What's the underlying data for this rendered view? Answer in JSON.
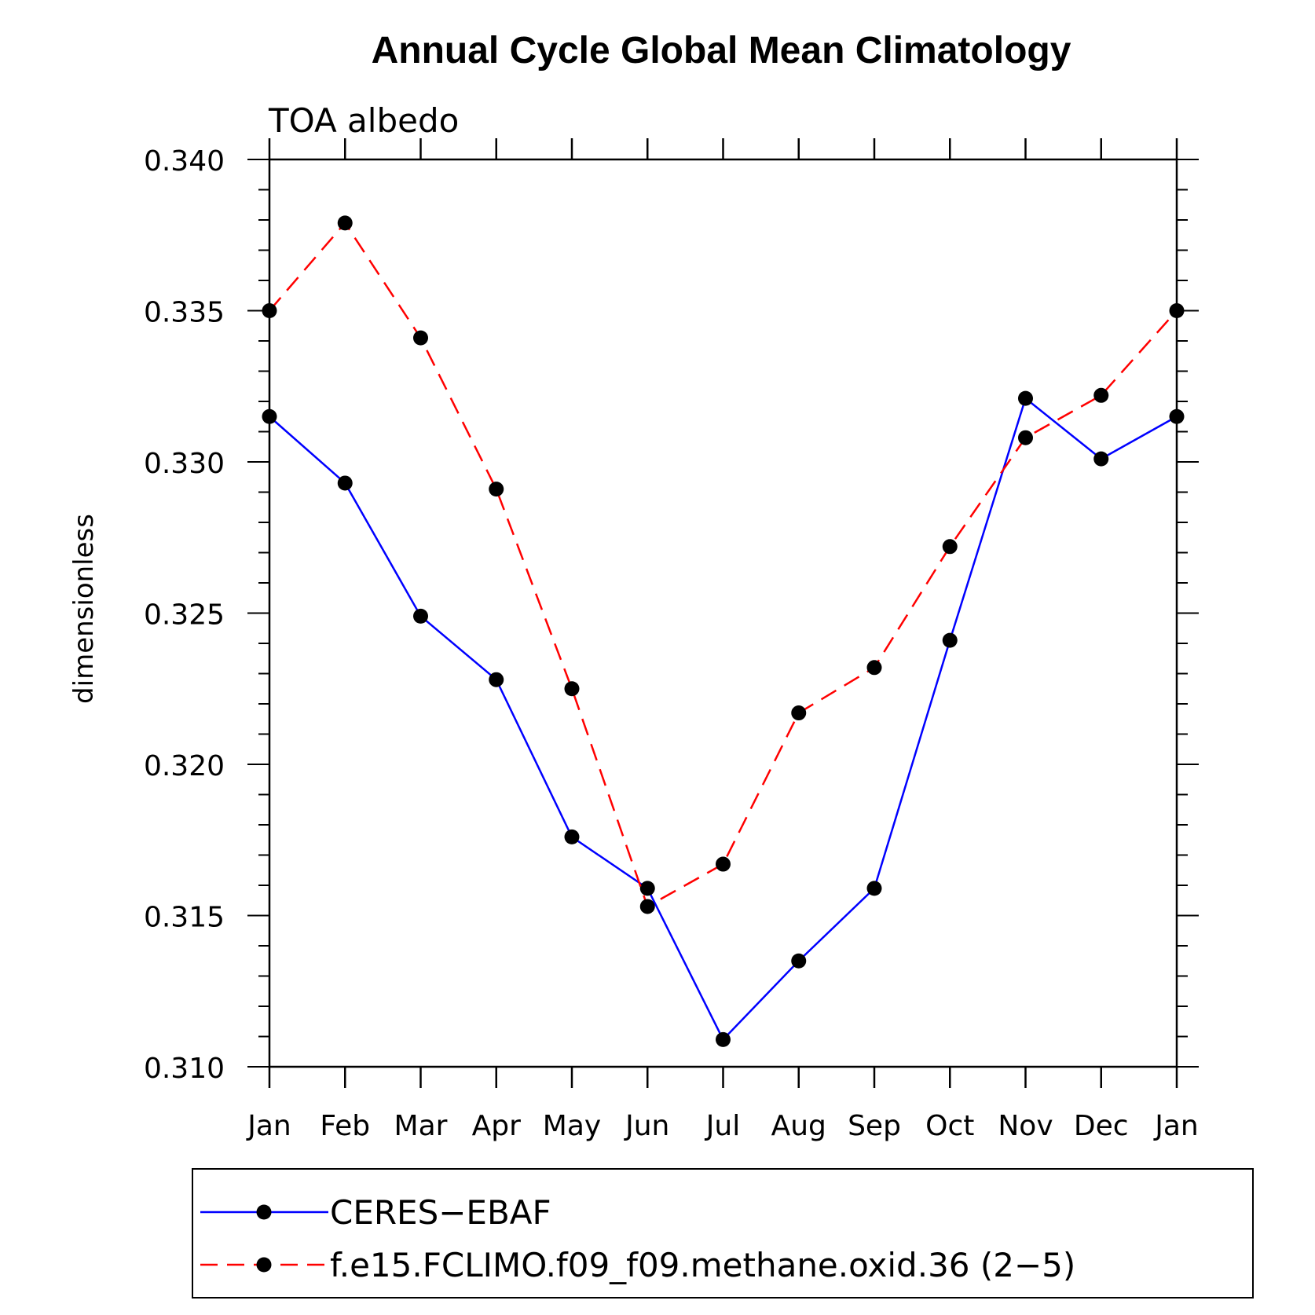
{
  "chart_data": {
    "type": "line",
    "title": "Annual Cycle Global Mean Climatology",
    "subtitle": "TOA albedo",
    "ylabel": "dimensionless",
    "xlabel": "",
    "categories": [
      "Jan",
      "Feb",
      "Mar",
      "Apr",
      "May",
      "Jun",
      "Jul",
      "Aug",
      "Sep",
      "Oct",
      "Nov",
      "Dec",
      "Jan"
    ],
    "ylim": [
      0.31,
      0.34
    ],
    "yticks": [
      "0.310",
      "0.315",
      "0.320",
      "0.325",
      "0.330",
      "0.335",
      "0.340"
    ],
    "grid": false,
    "legend_position": "bottom",
    "series": [
      {
        "name": "CERES−EBAF",
        "color": "#0000ff",
        "dash": "solid",
        "marker": "filled-circle",
        "values": [
          0.3315,
          0.3293,
          0.3249,
          0.3228,
          0.3176,
          0.3159,
          0.3109,
          0.3135,
          0.3159,
          0.3241,
          0.3321,
          0.3301,
          0.3315
        ]
      },
      {
        "name": "f.e15.FCLIMO.f09_f09.methane.oxid.36 (2−5)",
        "color": "#ff0000",
        "dash": "dashed",
        "marker": "filled-circle",
        "values": [
          0.335,
          0.3379,
          0.3341,
          0.3291,
          0.3225,
          0.3153,
          0.3167,
          0.3217,
          0.3232,
          0.3272,
          0.3308,
          0.3322,
          0.335
        ]
      }
    ]
  }
}
